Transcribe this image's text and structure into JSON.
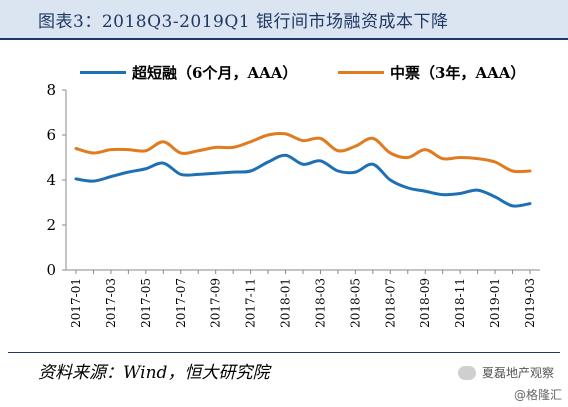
{
  "title": "图表3：2018Q3-2019Q1 银行间市场融资成本下降",
  "source": "资料来源：Wind，恒大研究院",
  "watermark": "夏磊地产观察",
  "watermark_sub": "@格隆汇",
  "colors": {
    "blue": "#1f6fb5",
    "orange": "#e07b1f"
  },
  "chart_data": {
    "type": "line",
    "title": "图表3：2018Q3-2019Q1 银行间市场融资成本下降",
    "xlabel": "",
    "ylabel": "",
    "ylim": [
      0,
      8
    ],
    "yticks": [
      0,
      2,
      4,
      6,
      8
    ],
    "grid": false,
    "legend": "top",
    "x": [
      "2017-01",
      "2017-02",
      "2017-03",
      "2017-04",
      "2017-05",
      "2017-06",
      "2017-07",
      "2017-08",
      "2017-09",
      "2017-10",
      "2017-11",
      "2017-12",
      "2018-01",
      "2018-02",
      "2018-03",
      "2018-04",
      "2018-05",
      "2018-06",
      "2018-07",
      "2018-08",
      "2018-09",
      "2018-10",
      "2018-11",
      "2018-12",
      "2019-01",
      "2019-02",
      "2019-03"
    ],
    "xtick_labels": [
      "2017-01",
      "2017-03",
      "2017-05",
      "2017-07",
      "2017-09",
      "2017-11",
      "2018-01",
      "2018-03",
      "2018-05",
      "2018-07",
      "2018-09",
      "2018-11",
      "2019-01",
      "2019-03"
    ],
    "series": [
      {
        "name": "超短融（6个月，AAA）",
        "color": "#1f6fb5",
        "values": [
          4.05,
          3.95,
          4.15,
          4.35,
          4.5,
          4.75,
          4.25,
          4.25,
          4.3,
          4.35,
          4.4,
          4.8,
          5.1,
          4.7,
          4.85,
          4.4,
          4.35,
          4.7,
          4.0,
          3.65,
          3.5,
          3.35,
          3.4,
          3.55,
          3.25,
          2.85,
          2.95
        ]
      },
      {
        "name": "中票（3年，AAA）",
        "color": "#e07b1f",
        "values": [
          5.4,
          5.2,
          5.35,
          5.35,
          5.3,
          5.7,
          5.2,
          5.3,
          5.45,
          5.45,
          5.7,
          6.0,
          6.05,
          5.75,
          5.85,
          5.3,
          5.5,
          5.85,
          5.2,
          5.0,
          5.35,
          4.95,
          5.0,
          4.95,
          4.8,
          4.4,
          4.4
        ]
      }
    ]
  }
}
